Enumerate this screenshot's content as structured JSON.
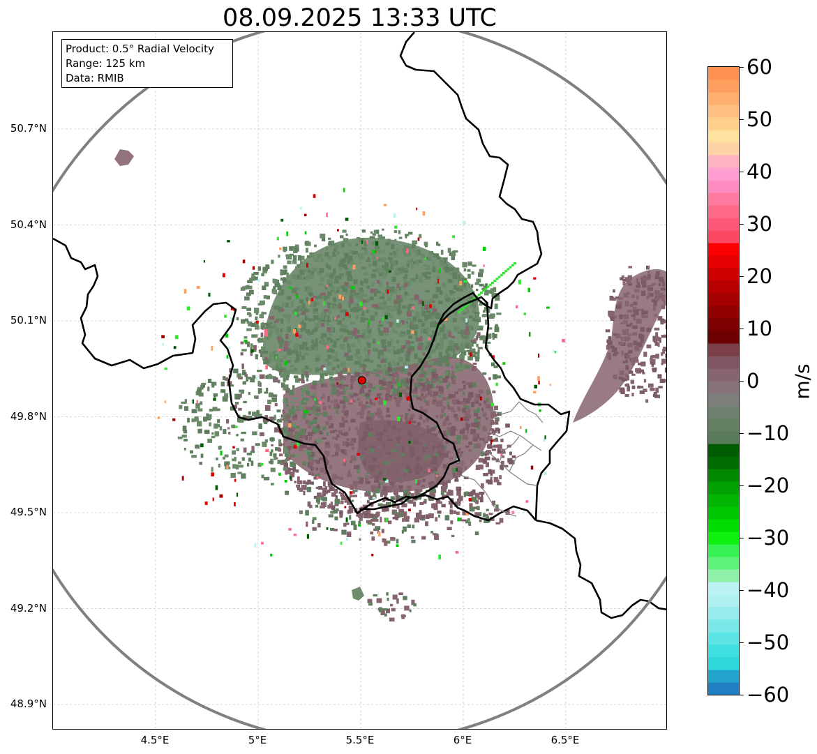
{
  "title": "08.09.2025 13:33 UTC",
  "info_box": {
    "product": "Product: 0.5° Radial Velocity",
    "range": "Range: 125 km",
    "data": "Data: RMIB"
  },
  "map": {
    "lon_range": [
      4.0,
      7.0
    ],
    "lat_range": [
      48.8,
      51.0
    ],
    "lat_ticks": [
      "50.7°N",
      "50.4°N",
      "50.1°N",
      "49.8°N",
      "49.5°N",
      "49.2°N",
      "48.9°N"
    ],
    "lat_values": [
      50.7,
      50.4,
      50.1,
      49.8,
      49.5,
      49.2,
      48.9
    ],
    "lon_ticks": [
      "4.5°E",
      "5°E",
      "5.5°E",
      "6°E",
      "6.5°E"
    ],
    "lon_values": [
      4.5,
      5.0,
      5.5,
      6.0,
      6.5
    ],
    "grid": true,
    "radar_site": {
      "lon": 5.506,
      "lat": 49.914
    },
    "range_km": 125,
    "colors": {
      "range_ring": "#808080",
      "border": "#000000",
      "admin_border": "#808080",
      "radar_marker": "#e00000",
      "echo_green": "#5f7f5f",
      "echo_mauve": "#86646e",
      "echo_dark": "#7a5a64"
    }
  },
  "colorbar": {
    "unit": "m/s",
    "min": -60,
    "max": 60,
    "tick_labels": [
      "60",
      "50",
      "40",
      "30",
      "20",
      "10",
      "0",
      "−10",
      "−20",
      "−30",
      "−40",
      "−50",
      "−60"
    ],
    "tick_values": [
      60,
      50,
      40,
      30,
      20,
      10,
      0,
      -10,
      -20,
      -30,
      -40,
      -50,
      -60
    ],
    "colors_bottom_to_top": [
      "#1f7fc2",
      "#22a4cc",
      "#2cd8dc",
      "#3fe0e0",
      "#5ce4e4",
      "#7ae8e8",
      "#96ecec",
      "#b0f0f0",
      "#bdf2f2",
      "#8ff0a8",
      "#5ff27a",
      "#36f252",
      "#0ef00e",
      "#00dd00",
      "#00c800",
      "#00b400",
      "#00a000",
      "#008800",
      "#006c00",
      "#005c00",
      "#5a7b5a",
      "#637f63",
      "#6f8270",
      "#7c7f79",
      "#86737a",
      "#866472",
      "#805460",
      "#7a3f48",
      "#6d0000",
      "#7d0000",
      "#900000",
      "#a40000",
      "#b80000",
      "#cc0000",
      "#e40000",
      "#fa0000",
      "#fd4862",
      "#fe5878",
      "#ff6a8a",
      "#ff7aa0",
      "#ff8cc0",
      "#ff9ed0",
      "#ffb2c0",
      "#ffd2a8",
      "#ffe2a0",
      "#ffd089",
      "#ffbf80",
      "#ffb070",
      "#ffa060",
      "#ff9050"
    ]
  }
}
